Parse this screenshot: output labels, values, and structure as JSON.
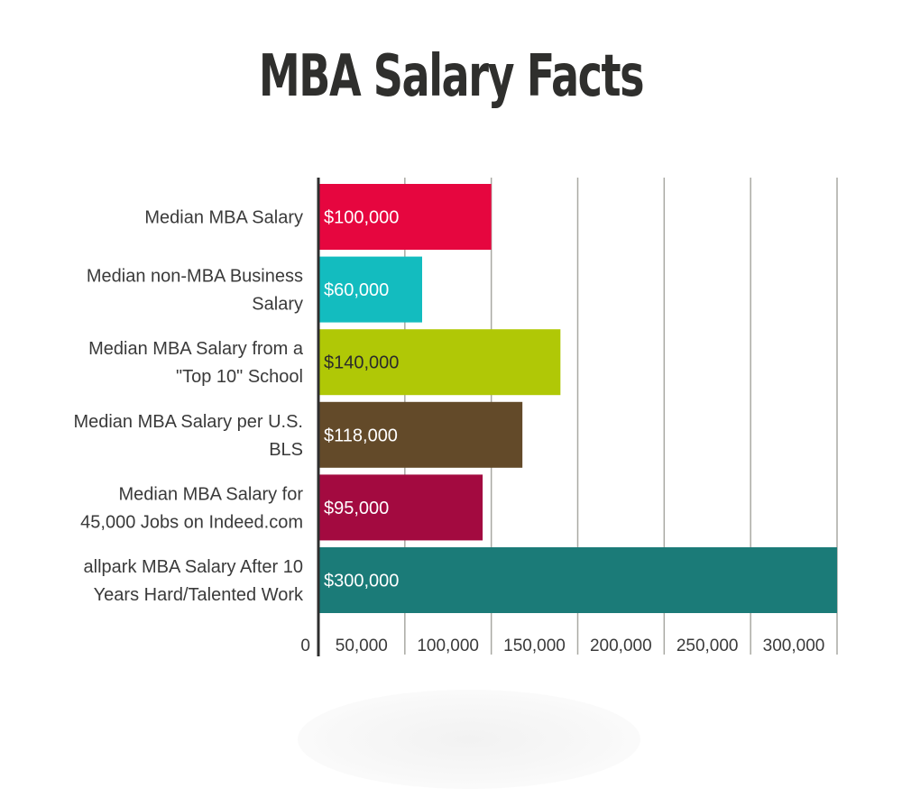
{
  "chart_data": {
    "type": "bar",
    "orientation": "horizontal",
    "title": "MBA Salary Facts",
    "categories": [
      [
        "Median MBA Salary"
      ],
      [
        "Median non-MBA Business",
        "Salary"
      ],
      [
        "Median MBA Salary from a",
        "\"Top 10\" School"
      ],
      [
        "Median MBA Salary per U.S.",
        "BLS"
      ],
      [
        "Median MBA Salary for",
        "45,000 Jobs on Indeed.com"
      ],
      [
        "allpark MBA Salary After 10",
        "Years Hard/Talented Work"
      ]
    ],
    "values": [
      100000,
      60000,
      140000,
      118000,
      95000,
      300000
    ],
    "value_labels": [
      "$100,000",
      "$60,000",
      "$140,000",
      "$118,000",
      "$95,000",
      "$300,000"
    ],
    "colors": [
      "#e6063f",
      "#13bcbf",
      "#b0c806",
      "#634a29",
      "#a30a40",
      "#1b7b78"
    ],
    "label_colors": [
      "#ffffff",
      "#ffffff",
      "#2b2b2b",
      "#ffffff",
      "#ffffff",
      "#ffffff"
    ],
    "xlim": [
      0,
      300000
    ],
    "ticks": [
      0,
      50000,
      100000,
      150000,
      200000,
      250000,
      300000
    ],
    "tick_labels": [
      "0",
      "50,000",
      "100,000",
      "150,000",
      "200,000",
      "250,000",
      "300,000"
    ],
    "grid": true,
    "xlabel": "",
    "ylabel": ""
  }
}
